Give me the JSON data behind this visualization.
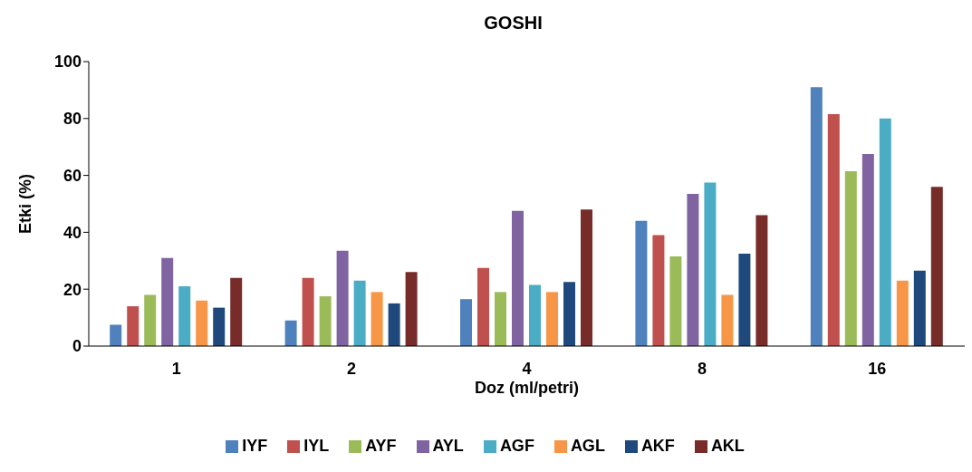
{
  "chart_data": {
    "type": "bar",
    "title": "GOSHI",
    "xlabel": "Doz (ml/petri)",
    "ylabel": "Etki (%)",
    "categories": [
      "1",
      "2",
      "4",
      "8",
      "16"
    ],
    "series": [
      {
        "name": "IYF",
        "color": "#4f81bd",
        "values": [
          7.5,
          9,
          16.5,
          44,
          91
        ]
      },
      {
        "name": "IYL",
        "color": "#c0504d",
        "values": [
          14,
          24,
          27.5,
          39,
          81.5
        ]
      },
      {
        "name": "AYF",
        "color": "#9bbb59",
        "values": [
          18,
          17.5,
          19,
          31.5,
          61.5
        ]
      },
      {
        "name": "AYL",
        "color": "#8064a2",
        "values": [
          31,
          33.5,
          47.5,
          53.5,
          67.5
        ]
      },
      {
        "name": "AGF",
        "color": "#4bacc6",
        "values": [
          21,
          23,
          21.5,
          57.5,
          80
        ]
      },
      {
        "name": "AGL",
        "color": "#f79646",
        "values": [
          16,
          19,
          19,
          18,
          23
        ]
      },
      {
        "name": "AKF",
        "color": "#1f497d",
        "values": [
          13.5,
          15,
          22.5,
          32.5,
          26.5
        ]
      },
      {
        "name": "AKL",
        "color": "#772c2a",
        "values": [
          24,
          26,
          48,
          46,
          56
        ]
      }
    ],
    "ylim": [
      0,
      100
    ],
    "yticks": [
      0,
      20,
      40,
      60,
      80,
      100
    ],
    "grid": false,
    "legend": "bottom"
  }
}
